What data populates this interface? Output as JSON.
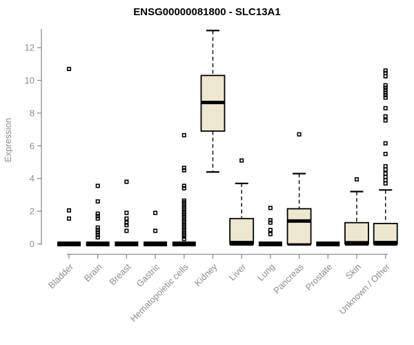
{
  "title": "ENSG00000081800 - SLC13A1",
  "colors": {
    "axis": "#8c8c8c",
    "labels": "#8c8c8c",
    "title": "#000000",
    "box_fill": "#EDE7D0",
    "box_stroke": "#000000"
  },
  "chart_data": {
    "type": "boxplot",
    "title": "ENSG00000081800 - SLC13A1",
    "xlabel": "",
    "ylabel": "Expression",
    "ylim": [
      0,
      13
    ],
    "yticks": [
      0,
      2,
      4,
      6,
      8,
      10,
      12
    ],
    "grid": false,
    "legend": false,
    "categories": [
      "Bladder",
      "Brain",
      "Breast",
      "Gastric",
      "Hematopoietic cells",
      "Kidney",
      "Liver",
      "Lung",
      "Pancreas",
      "Prostate",
      "Skin",
      "Unknown / Other"
    ],
    "series": [
      {
        "name": "Bladder",
        "whislo": 0,
        "q1": 0,
        "med": 0,
        "q3": 0,
        "whishi": 0,
        "outliers": [
          10.7,
          2.05,
          1.55
        ]
      },
      {
        "name": "Brain",
        "whislo": 0,
        "q1": 0,
        "med": 0,
        "q3": 0,
        "whishi": 0,
        "outliers": [
          3.55,
          2.6,
          1.85,
          1.7,
          1.55,
          1.0,
          0.85,
          0.7,
          0.55,
          0.4
        ]
      },
      {
        "name": "Breast",
        "whislo": 0,
        "q1": 0,
        "med": 0,
        "q3": 0,
        "whishi": 0,
        "outliers": [
          3.8,
          1.9,
          1.55,
          1.3,
          1.15,
          0.8
        ]
      },
      {
        "name": "Gastric",
        "whislo": 0,
        "q1": 0,
        "med": 0,
        "q3": 0,
        "whishi": 0,
        "outliers": [
          1.9,
          0.8
        ]
      },
      {
        "name": "Hematopoietic cells",
        "whislo": 0,
        "q1": 0,
        "med": 0,
        "q3": 0,
        "whishi": 0,
        "outliers": [
          6.65,
          4.65,
          4.5,
          3.55,
          3.4,
          2.65,
          2.55,
          2.45,
          2.35,
          2.25,
          2.15,
          2.05,
          1.95,
          1.85,
          1.75,
          1.65,
          1.55,
          1.45,
          1.35,
          1.25,
          1.15,
          1.05,
          0.95,
          0.85,
          0.75,
          0.65,
          0.55,
          0.45,
          0.3
        ]
      },
      {
        "name": "Kidney",
        "whislo": 4.4,
        "q1": 6.9,
        "med": 8.65,
        "q3": 10.3,
        "whishi": 13.05,
        "outliers": []
      },
      {
        "name": "Liver",
        "whislo": 0,
        "q1": 0,
        "med": 0.08,
        "q3": 1.55,
        "whishi": 3.7,
        "outliers": [
          5.1
        ]
      },
      {
        "name": "Lung",
        "whislo": 0,
        "q1": 0,
        "med": 0,
        "q3": 0,
        "whishi": 0,
        "outliers": [
          2.2,
          1.45,
          1.3,
          0.85,
          0.6
        ]
      },
      {
        "name": "Pancreas",
        "whislo": 0,
        "q1": 0,
        "med": 1.4,
        "q3": 2.15,
        "whishi": 4.3,
        "outliers": [
          6.7
        ]
      },
      {
        "name": "Prostate",
        "whislo": 0,
        "q1": 0,
        "med": 0,
        "q3": 0,
        "whishi": 0,
        "outliers": []
      },
      {
        "name": "Skin",
        "whislo": 0,
        "q1": 0,
        "med": 0.07,
        "q3": 1.3,
        "whishi": 3.2,
        "outliers": [
          3.95
        ]
      },
      {
        "name": "Unknown / Other",
        "whislo": 0,
        "q1": 0,
        "med": 0.08,
        "q3": 1.25,
        "whishi": 3.3,
        "outliers": [
          10.6,
          10.45,
          10.25,
          9.7,
          9.55,
          9.4,
          9.25,
          9.1,
          8.95,
          8.3,
          7.8,
          7.55,
          6.15,
          5.5,
          4.75,
          4.55,
          4.3,
          4.1,
          3.9,
          3.7
        ]
      }
    ]
  }
}
